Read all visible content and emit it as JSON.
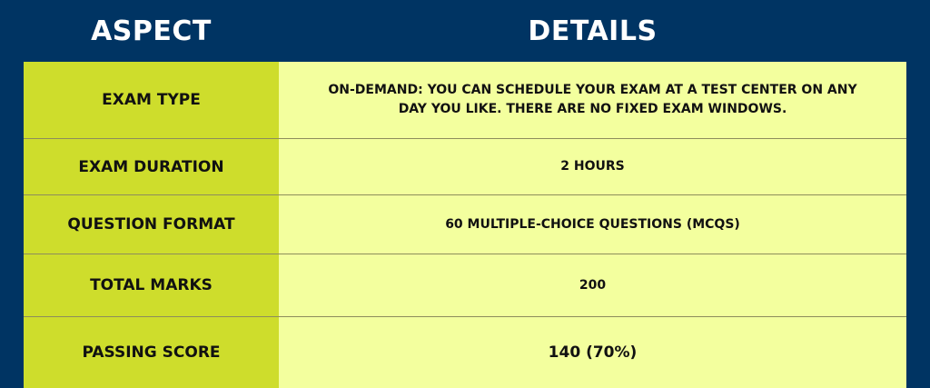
{
  "header": {
    "aspect": "ASPECT",
    "details": "DETAILS"
  },
  "rows": [
    {
      "aspect": "EXAM TYPE",
      "details": "ON-DEMAND: YOU CAN SCHEDULE YOUR EXAM AT A TEST CENTER ON ANY DAY YOU LIKE. THERE ARE NO FIXED EXAM WINDOWS."
    },
    {
      "aspect": "EXAM DURATION",
      "details": "2 HOURS"
    },
    {
      "aspect": "QUESTION FORMAT",
      "details": "60 MULTIPLE-CHOICE QUESTIONS (MCQS)"
    },
    {
      "aspect": "TOTAL MARKS",
      "details": "200"
    },
    {
      "aspect": "PASSING SCORE",
      "details": "140 (70%)"
    }
  ],
  "colors": {
    "background": "#003463",
    "aspect_cell": "#cedd2c",
    "details_cell": "#f3ff9e"
  }
}
